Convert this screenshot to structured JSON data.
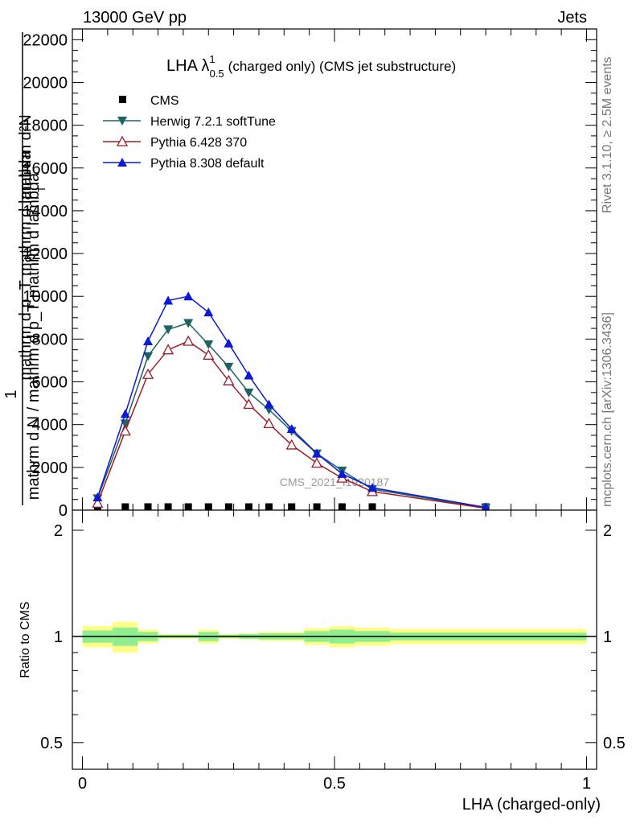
{
  "header": {
    "energy_label": "13000 GeV pp",
    "process_label": "Jets"
  },
  "side_labels": {
    "rivet_version": "Rivet 3.1.10, ≥ 2.5M events",
    "mcplots_ref": "mcplots.cern.ch [arXiv:1306.3436]"
  },
  "watermark": "CMS_2021_I1920187",
  "colors": {
    "cms": "#000000",
    "herwig": "#1f6262",
    "pythia6": "#a01a28",
    "pythia8": "#0a1ad6",
    "band_inner": "#90ee90",
    "band_outer": "#ffff88"
  },
  "chart_data": [
    {
      "type": "line",
      "title_main": "LHA λ",
      "title_sup": "1",
      "title_sub": "0.5",
      "title_rest": "(charged only) (CMS jet substructure)",
      "ylabel_top": "mathrm d²N",
      "ylabel_fraction_top": "mathrm d p_T mathrm d lambda",
      "ylabel_fraction_bottom": "mathrm d N / mathrm d p_T mathrm d lambda",
      "ylabel_one": "1",
      "ylabel_sub_t": "T",
      "ylim": [
        0,
        22500
      ],
      "yticks": [
        0,
        2000,
        4000,
        6000,
        8000,
        10000,
        12000,
        14000,
        16000,
        18000,
        20000,
        22000
      ],
      "ytick_labels": [
        "0",
        "2000",
        "4000",
        "6000",
        "8000",
        "10000",
        "12000",
        "14000",
        "16000",
        "18000",
        "20000",
        "22000"
      ],
      "xlim": [
        -0.02,
        1.02
      ],
      "legend": [
        "CMS",
        "Herwig 7.2.1 softTune",
        "Pythia 6.428 370",
        "Pythia 8.308 default"
      ],
      "legend_position": "top-left",
      "series": [
        {
          "name": "CMS",
          "marker": "square",
          "x": [
            0.03,
            0.085,
            0.13,
            0.17,
            0.21,
            0.25,
            0.29,
            0.33,
            0.37,
            0.415,
            0.465,
            0.515,
            0.575,
            0.8
          ],
          "values": [
            20,
            20,
            20,
            20,
            20,
            20,
            20,
            20,
            20,
            20,
            20,
            20,
            20,
            20
          ]
        },
        {
          "name": "Herwig 7.2.1 softTune",
          "marker": "triangle-down",
          "x": [
            0.03,
            0.085,
            0.13,
            0.17,
            0.21,
            0.25,
            0.29,
            0.33,
            0.37,
            0.415,
            0.465,
            0.515,
            0.575,
            0.8
          ],
          "values": [
            550,
            4050,
            7200,
            8450,
            8750,
            7750,
            6700,
            5500,
            4700,
            3700,
            2650,
            1850,
            980,
            110
          ]
        },
        {
          "name": "Pythia 6.428 370",
          "marker": "triangle-up-open",
          "x": [
            0.03,
            0.085,
            0.13,
            0.17,
            0.21,
            0.25,
            0.29,
            0.33,
            0.37,
            0.415,
            0.465,
            0.515,
            0.575,
            0.8
          ],
          "values": [
            330,
            3700,
            6350,
            7500,
            7900,
            7250,
            6050,
            4950,
            4050,
            3050,
            2200,
            1500,
            870,
            90
          ]
        },
        {
          "name": "Pythia 8.308 default",
          "marker": "triangle-up",
          "x": [
            0.03,
            0.085,
            0.13,
            0.17,
            0.21,
            0.25,
            0.29,
            0.33,
            0.37,
            0.415,
            0.465,
            0.515,
            0.575,
            0.8
          ],
          "values": [
            600,
            4500,
            7900,
            9800,
            10000,
            9250,
            7800,
            6300,
            4950,
            3800,
            2650,
            1700,
            1050,
            130
          ]
        }
      ]
    },
    {
      "type": "area",
      "ylabel": "Ratio to CMS",
      "xlabel": "LHA (charged-only)",
      "ylim": [
        0.42,
        2.28
      ],
      "yscale": "log",
      "yticks": [
        0.5,
        1,
        2
      ],
      "ytick_labels": [
        "0.5",
        "1",
        "2"
      ],
      "xlim": [
        -0.02,
        1.02
      ],
      "xticks": [
        0,
        0.5,
        1
      ],
      "xtick_labels": [
        "0",
        "0.5",
        "1"
      ],
      "bins": [
        0.0,
        0.06,
        0.11,
        0.15,
        0.19,
        0.23,
        0.27,
        0.31,
        0.35,
        0.39,
        0.44,
        0.49,
        0.54,
        0.61,
        1.0
      ],
      "ratio": [
        1,
        1,
        1,
        1,
        1,
        1,
        1,
        1,
        1,
        1,
        1,
        1,
        1,
        1
      ],
      "band_inner": [
        0.04,
        0.06,
        0.03,
        0.01,
        0.01,
        0.03,
        0.01,
        0.015,
        0.02,
        0.02,
        0.035,
        0.045,
        0.035,
        0.025
      ],
      "band_outer": [
        0.07,
        0.1,
        0.045,
        0.015,
        0.015,
        0.045,
        0.015,
        0.02,
        0.03,
        0.03,
        0.055,
        0.07,
        0.06,
        0.05
      ]
    }
  ]
}
